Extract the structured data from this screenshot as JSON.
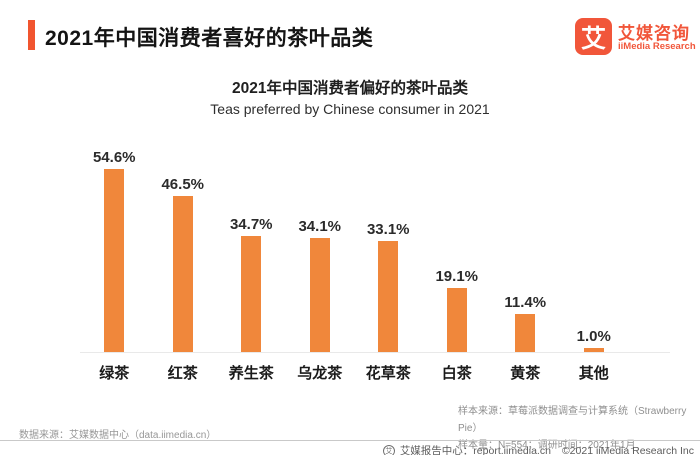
{
  "header": {
    "title": "2021年中国消费者喜好的茶叶品类",
    "logo": {
      "mark": "艾",
      "name_cn": "艾媒咨询",
      "name_en": "iiMedia Research"
    }
  },
  "chart_data": {
    "type": "bar",
    "title": "2021年中国消费者偏好的茶叶品类",
    "subtitle": "Teas preferred by Chinese consumer in 2021",
    "categories": [
      "绿茶",
      "红茶",
      "养生茶",
      "乌龙茶",
      "花草茶",
      "白茶",
      "黄茶",
      "其他"
    ],
    "values": [
      54.6,
      46.5,
      34.7,
      34.1,
      33.1,
      19.1,
      11.4,
      1.0
    ],
    "labels": [
      "54.6%",
      "46.5%",
      "34.7%",
      "34.1%",
      "33.1%",
      "19.1%",
      "11.4%",
      "1.0%"
    ],
    "unit": "%",
    "bar_color": "#F0873B",
    "ylim": [
      0,
      60
    ],
    "grid": false,
    "legend": "none",
    "xlabel": "",
    "ylabel": ""
  },
  "footnotes": {
    "sample_source": "样本来源：草莓派数据调查与计算系统（Strawberry Pie）",
    "sample_size": "样本量：N=554；调研时间：2021年1月",
    "data_source": "数据来源：艾媒数据中心（data.iimedia.cn）"
  },
  "footer": {
    "report_center": "艾媒报告中心：report.iimedia.cn",
    "copyright": "©2021  iiMedia Research Inc"
  },
  "colors": {
    "brand": "#F1552F",
    "bar": "#F0873B",
    "footnote_gray": "#8f8f8f"
  }
}
